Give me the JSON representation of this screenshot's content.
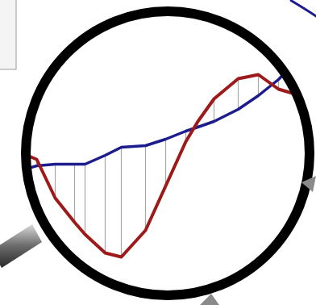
{
  "chart_data": {
    "type": "line",
    "x": [
      28,
      45,
      68,
      92,
      105,
      130,
      150,
      180,
      205,
      230,
      245,
      265,
      295,
      320,
      345,
      362
    ],
    "series": [
      {
        "color": "#1c1c8e",
        "values": [
          168,
          173,
          175,
          175,
          175,
          186,
          196,
          198,
          206,
          216,
          221,
          228,
          243,
          260,
          280,
          298
        ]
      },
      {
        "color": "#9e1a1a",
        "values": [
          188,
          181,
          133,
          103,
          88,
          65,
          60,
          93,
          148,
          203,
          228,
          256,
          281,
          286,
          268,
          263
        ]
      }
    ],
    "xlim": [
      0,
      392
    ],
    "ylim": [
      0,
      378
    ],
    "grid": false,
    "tick_labels": false
  }
}
